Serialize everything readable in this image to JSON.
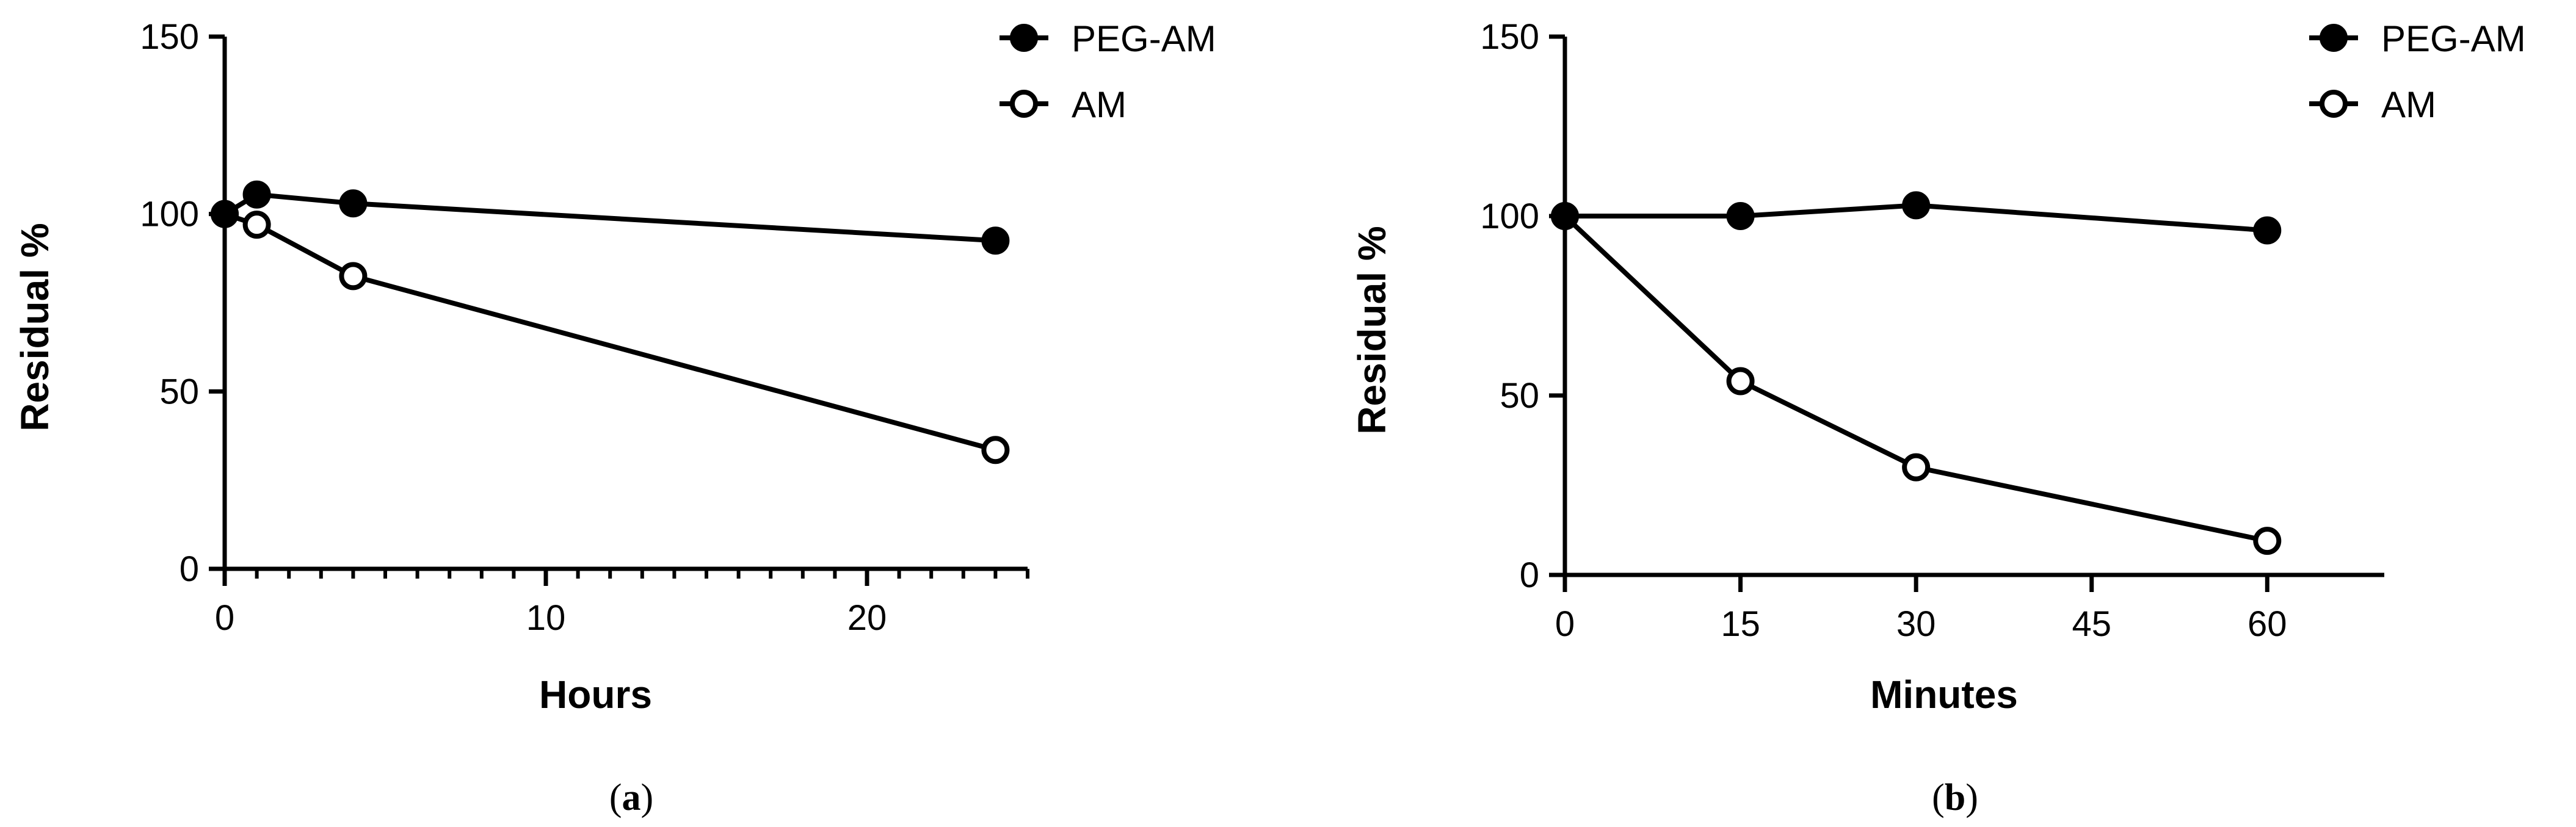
{
  "chart_data": [
    {
      "type": "line",
      "panel_label": "(a)",
      "panel_letter": "a",
      "xlabel": "Hours",
      "ylabel": "Residual %",
      "xlim": [
        0,
        25
      ],
      "ylim": [
        0,
        150
      ],
      "xticks": [
        0,
        10,
        20
      ],
      "yticks": [
        0,
        50,
        100,
        150
      ],
      "x_minor_ticks": true,
      "grid": false,
      "legend_position": "top-right",
      "series": [
        {
          "name": "PEG-AM",
          "marker": "filled-circle",
          "color": "#000000",
          "x": [
            0,
            1,
            4,
            24
          ],
          "y": [
            100,
            105.5,
            103,
            92.5
          ]
        },
        {
          "name": "AM",
          "marker": "open-circle",
          "color": "#000000",
          "x": [
            0,
            1,
            4,
            24
          ],
          "y": [
            100,
            97,
            82.5,
            33.5
          ]
        }
      ]
    },
    {
      "type": "line",
      "panel_label": "(b)",
      "panel_letter": "b",
      "xlabel": "Minutes",
      "ylabel": "Residual %",
      "xlim": [
        0,
        70
      ],
      "ylim": [
        0,
        150
      ],
      "xticks": [
        0,
        15,
        30,
        45,
        60
      ],
      "yticks": [
        0,
        50,
        100,
        150
      ],
      "x_minor_ticks": false,
      "grid": false,
      "legend_position": "top-right",
      "series": [
        {
          "name": "PEG-AM",
          "marker": "filled-circle",
          "color": "#000000",
          "x": [
            0,
            15,
            30,
            60
          ],
          "y": [
            100,
            100,
            103,
            96
          ]
        },
        {
          "name": "AM",
          "marker": "open-circle",
          "color": "#000000",
          "x": [
            0,
            15,
            30,
            60
          ],
          "y": [
            100,
            54,
            30,
            9.5
          ]
        }
      ]
    }
  ]
}
